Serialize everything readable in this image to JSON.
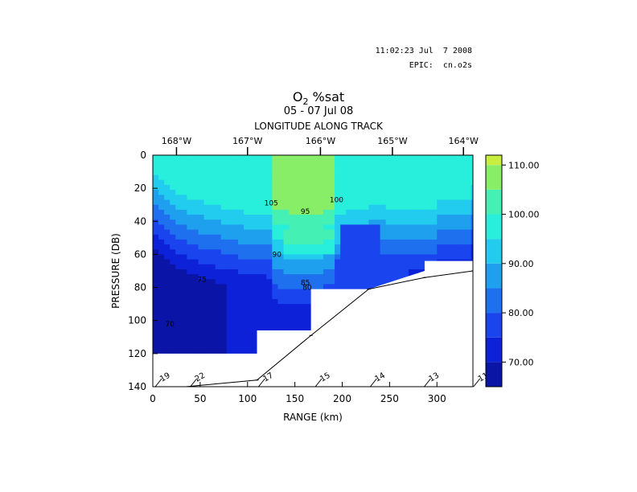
{
  "header": {
    "timestamp": "11:02:23 Jul  7 2008",
    "epic": "EPIC:  cn.o2s"
  },
  "title": {
    "main": "O",
    "main_sub": "2",
    "main_rest": " %sat",
    "dates": "05 - 07 Jul 08",
    "top_axis": "LONGITUDE ALONG TRACK"
  },
  "chart_data": {
    "type": "heatmap",
    "title": "O2 %sat",
    "subtitle": "05 - 07 Jul 08",
    "xlabel": "RANGE (km)",
    "ylabel": "PRESSURE (DB)",
    "top_xlabel": "LONGITUDE ALONG TRACK",
    "xlim": [
      0,
      338
    ],
    "ylim": [
      140,
      0
    ],
    "x_ticks": [
      0,
      50,
      100,
      150,
      200,
      250,
      300
    ],
    "y_ticks": [
      0,
      20,
      40,
      60,
      80,
      100,
      120,
      140
    ],
    "top_ticks": [
      {
        "label": "168°W",
        "x": 25
      },
      {
        "label": "167°W",
        "x": 100
      },
      {
        "label": "166°W",
        "x": 177
      },
      {
        "label": "165°W",
        "x": 253
      },
      {
        "label": "164°W",
        "x": 328
      }
    ],
    "colorbar": {
      "levels": [
        65,
        70,
        75,
        80,
        85,
        90,
        95,
        100,
        105,
        110
      ],
      "colors": [
        "#0a14a6",
        "#0d22d8",
        "#1a45ee",
        "#1f70ee",
        "#1fa0ee",
        "#22ccee",
        "#28eedc",
        "#44f0b4",
        "#88ee68",
        "#c8ee40"
      ],
      "tick_labels": [
        "70.00",
        "80.00",
        "90.00",
        "100.00",
        "110.00"
      ],
      "tick_values": [
        70,
        80,
        90,
        100,
        110
      ]
    },
    "contour_labels": [
      {
        "text": "105",
        "x": 125,
        "y": 29
      },
      {
        "text": "100",
        "x": 194,
        "y": 27
      },
      {
        "text": "95",
        "x": 161,
        "y": 34
      },
      {
        "text": "90",
        "x": 131,
        "y": 60
      },
      {
        "text": "85",
        "x": 161,
        "y": 77
      },
      {
        "text": "80",
        "x": 163,
        "y": 80
      },
      {
        "text": "75",
        "x": 52,
        "y": 75
      },
      {
        "text": "70",
        "x": 18,
        "y": 102
      }
    ],
    "stations": [
      {
        "label": "19",
        "x": 6
      },
      {
        "label": "22",
        "x": 43
      },
      {
        "label": "17",
        "x": 115
      },
      {
        "label": "15",
        "x": 175
      },
      {
        "label": "14",
        "x": 233
      },
      {
        "label": "13",
        "x": 290
      },
      {
        "label": "11",
        "x": 342
      }
    ],
    "bottom_profile": [
      {
        "x": 35,
        "y": 140
      },
      {
        "x": 110,
        "y": 136
      },
      {
        "x": 167,
        "y": 109
      },
      {
        "x": 228,
        "y": 81
      },
      {
        "x": 287,
        "y": 74
      },
      {
        "x": 338,
        "y": 70
      }
    ]
  }
}
